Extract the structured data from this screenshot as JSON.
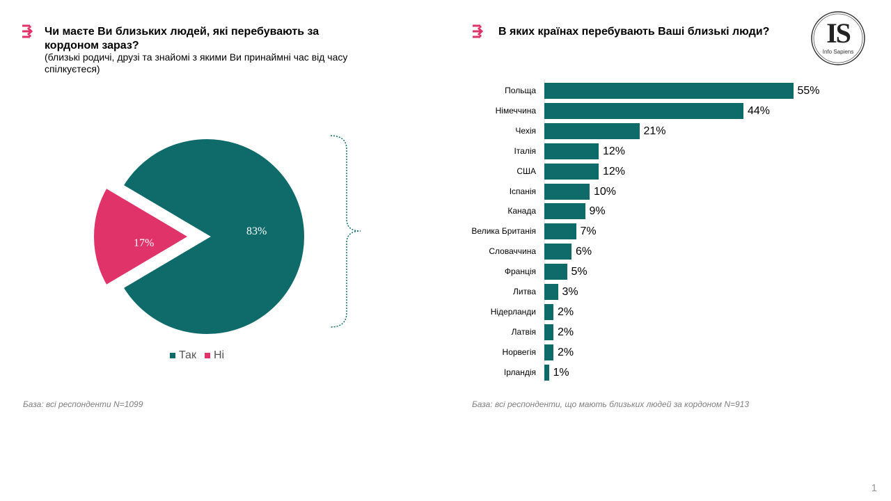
{
  "colors": {
    "teal": "#0e6b69",
    "pink": "#e0336a",
    "base_text": "#7f7f7f"
  },
  "left": {
    "title": "Чи маєте Ви близьких людей, які перебувають за кордоном зараз?",
    "subtitle": "(близькі родичі, друзі та знайомі з якими Ви принаймні час від часу спілкуєтеся)",
    "base": "База: всі респонденти N=1099"
  },
  "right": {
    "title": "В яких країнах перебувають Ваші близькі люди?",
    "base": "База: всі респонденти, що мають близьких людей за кордоном N=913"
  },
  "logo": {
    "letters": "IS",
    "caption": "Info Sapiens"
  },
  "page_number": "1",
  "chart_data": [
    {
      "type": "pie",
      "categories": [
        "Так",
        "Ні"
      ],
      "values": [
        83,
        17
      ],
      "labels": [
        "83%",
        "17%"
      ],
      "colors": [
        "#0e6b69",
        "#e0336a"
      ],
      "legend": "bottom"
    },
    {
      "type": "bar",
      "orientation": "horizontal",
      "categories": [
        "Польща",
        "Німеччина",
        "Чехія",
        "Італія",
        "США",
        "Іспанія",
        "Канада",
        "Велика Британія",
        "Словаччина",
        "Франція",
        "Литва",
        "Нідерланди",
        "Латвія",
        "Норвегія",
        "Ірландія"
      ],
      "values": [
        55,
        44,
        21,
        12,
        12,
        10,
        9,
        7,
        6,
        5,
        3,
        2,
        2,
        2,
        1
      ],
      "labels": [
        "55%",
        "44%",
        "21%",
        "12%",
        "12%",
        "10%",
        "9%",
        "7%",
        "6%",
        "5%",
        "3%",
        "2%",
        "2%",
        "2%",
        "1%"
      ],
      "color": "#0e6b69"
    }
  ]
}
